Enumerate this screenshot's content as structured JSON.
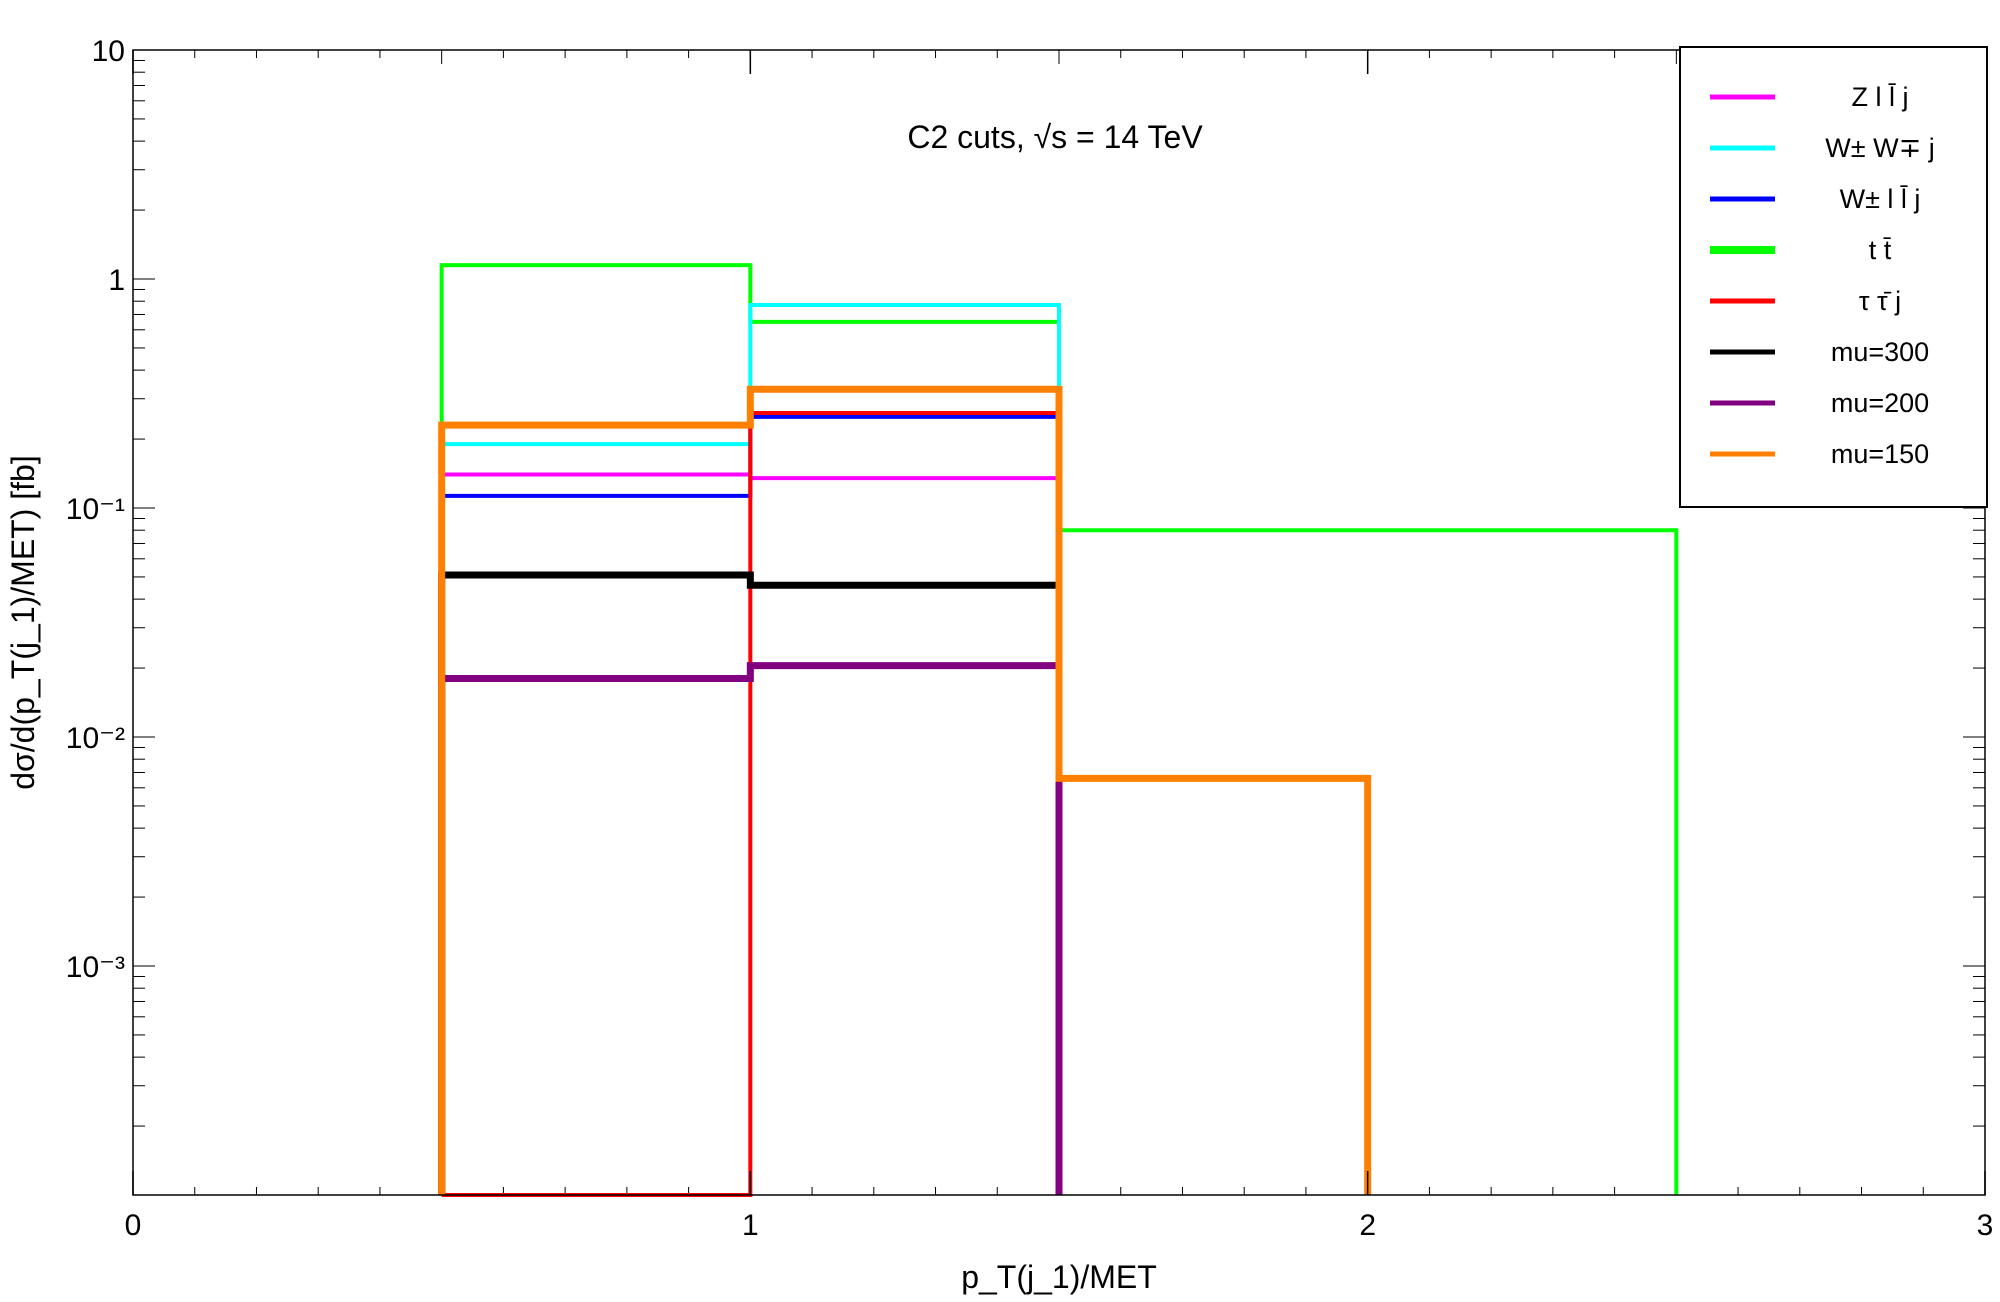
{
  "chart_data": {
    "type": "line",
    "step": true,
    "annotation": "C2 cuts, √s = 14 TeV",
    "xlabel": "p_T(j_1)/MET",
    "ylabel": "dσ/d(p_T(j_1)/MET) [fb]",
    "xlim": [
      0,
      3
    ],
    "ylim": [
      0.0001,
      10
    ],
    "yscale": "log",
    "x_ticks": [
      "0",
      "1",
      "2",
      "3"
    ],
    "y_ticks": [
      "10",
      "1",
      "10⁻¹",
      "10⁻²",
      "10⁻³"
    ],
    "legend_position": "top-right",
    "bin_edges": [
      0.5,
      1.0,
      1.5,
      2.0,
      2.5
    ],
    "series": [
      {
        "name": "Z l l̄ j",
        "color": "#ff00ff",
        "values": [
          0.14,
          0.135
        ]
      },
      {
        "name": "W± W∓ j",
        "color": "#00ffff",
        "values": [
          0.19,
          0.77
        ]
      },
      {
        "name": "W± l l̄ j",
        "color": "#0000ff",
        "values": [
          0.113,
          0.25
        ]
      },
      {
        "name": "t t̄",
        "color": "#00ff00",
        "values": [
          1.15,
          0.65,
          0.08,
          0.08
        ]
      },
      {
        "name": "τ τ̄ j",
        "color": "#ff0000",
        "values": [
          0.0001,
          0.26
        ]
      },
      {
        "name": "mu=300",
        "color": "#000000",
        "values": [
          0.051,
          0.046
        ]
      },
      {
        "name": "mu=200",
        "color": "#800080",
        "values": [
          0.018,
          0.0205
        ]
      },
      {
        "name": "mu=150",
        "color": "#ff8000",
        "values": [
          0.23,
          0.33,
          0.0066
        ]
      }
    ]
  }
}
